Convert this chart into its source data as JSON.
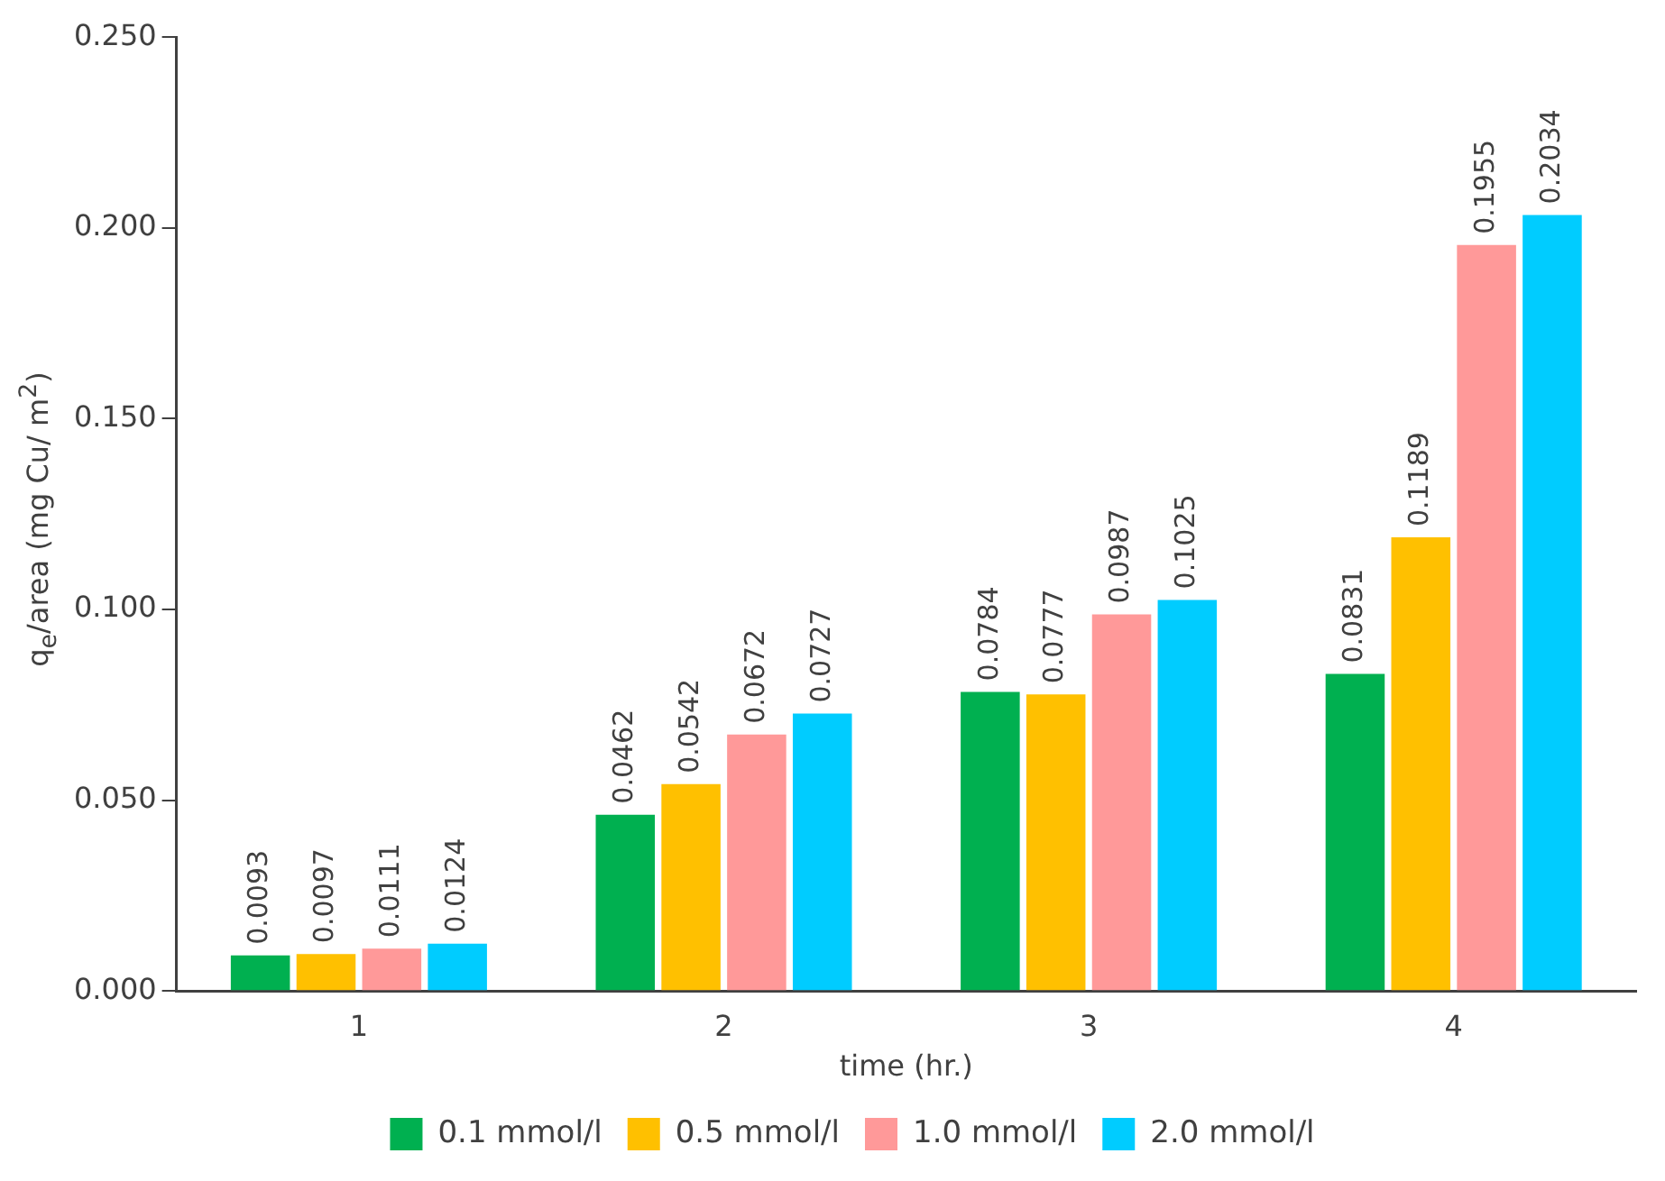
{
  "chart_data": {
    "type": "bar",
    "xlabel": "time (hr.)",
    "ylabel": "q$_{e}$/area (mg Cu/ m$^{2}$)",
    "categories": [
      "1",
      "2",
      "3",
      "4"
    ],
    "series": [
      {
        "name": "0.1 mmol/l",
        "color": "#00b050",
        "values": [
          0.0093,
          0.0462,
          0.0784,
          0.0831
        ]
      },
      {
        "name": "0.5 mmol/l",
        "color": "#ffc000",
        "values": [
          0.0097,
          0.0542,
          0.0777,
          0.1189
        ]
      },
      {
        "name": "1.0 mmol/l",
        "color": "#ff9999",
        "values": [
          0.0111,
          0.0672,
          0.0987,
          0.1955
        ]
      },
      {
        "name": "2.0 mmol/l",
        "color": "#00ccff",
        "values": [
          0.0124,
          0.0727,
          0.1025,
          0.2034
        ]
      }
    ],
    "ylim": [
      0,
      0.25
    ],
    "yticks": [
      "0.000",
      "0.050",
      "0.100",
      "0.150",
      "0.200",
      "0.250"
    ],
    "grid": false,
    "legend": "bottom",
    "data_labels": true
  }
}
